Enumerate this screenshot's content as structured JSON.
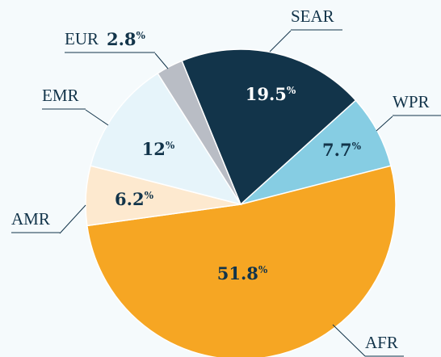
{
  "chart_data": {
    "type": "pie",
    "categories": [
      "SEAR",
      "WPR",
      "AFR",
      "AMR",
      "EMR",
      "EUR"
    ],
    "values": [
      19.5,
      7.7,
      51.8,
      6.2,
      12,
      2.8
    ],
    "value_labels": [
      "19.5%",
      "7.7%",
      "51.8%",
      "6.2%",
      "12%",
      "2.8%"
    ],
    "colors": [
      "#12344a",
      "#86cde3",
      "#f6a623",
      "#fde9cf",
      "#e6f4fa",
      "#b9bdc5"
    ]
  }
}
